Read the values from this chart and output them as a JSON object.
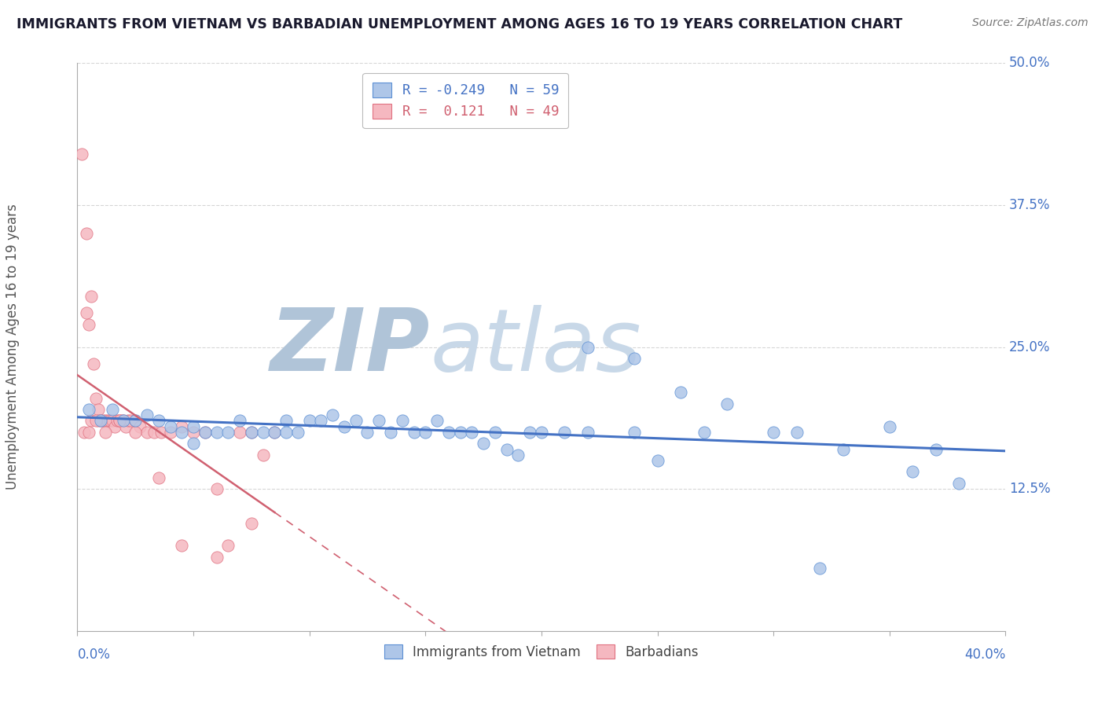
{
  "title": "IMMIGRANTS FROM VIETNAM VS BARBADIAN UNEMPLOYMENT AMONG AGES 16 TO 19 YEARS CORRELATION CHART",
  "source_text": "Source: ZipAtlas.com",
  "ylabel": "Unemployment Among Ages 16 to 19 years",
  "xlim": [
    0.0,
    0.4
  ],
  "ylim": [
    0.0,
    0.5
  ],
  "yticks": [
    0.0,
    0.125,
    0.25,
    0.375,
    0.5
  ],
  "ytick_labels": [
    "",
    "12.5%",
    "25.0%",
    "37.5%",
    "50.0%"
  ],
  "xtick_labels_left": "0.0%",
  "xtick_labels_right": "40.0%",
  "blue_color": "#aec6e8",
  "blue_edge_color": "#5b8fd4",
  "pink_color": "#f5b8c0",
  "pink_edge_color": "#e07080",
  "blue_line_color": "#4472c4",
  "pink_line_color": "#d06070",
  "axis_color": "#4472c4",
  "watermark_zip_color": "#b0c4d8",
  "watermark_atlas_color": "#c8d8e8",
  "grid_color": "#cccccc",
  "background_color": "#ffffff",
  "blue_scatter_x": [
    0.005,
    0.01,
    0.015,
    0.02,
    0.025,
    0.03,
    0.035,
    0.04,
    0.045,
    0.05,
    0.05,
    0.055,
    0.06,
    0.065,
    0.07,
    0.075,
    0.08,
    0.085,
    0.09,
    0.09,
    0.095,
    0.1,
    0.105,
    0.11,
    0.115,
    0.12,
    0.125,
    0.13,
    0.135,
    0.14,
    0.145,
    0.15,
    0.155,
    0.16,
    0.165,
    0.17,
    0.175,
    0.18,
    0.185,
    0.19,
    0.195,
    0.2,
    0.21,
    0.22,
    0.24,
    0.25,
    0.27,
    0.28,
    0.3,
    0.31,
    0.32,
    0.33,
    0.35,
    0.36,
    0.37,
    0.38,
    0.22,
    0.24,
    0.26
  ],
  "blue_scatter_y": [
    0.195,
    0.185,
    0.195,
    0.185,
    0.185,
    0.19,
    0.185,
    0.18,
    0.175,
    0.18,
    0.165,
    0.175,
    0.175,
    0.175,
    0.185,
    0.175,
    0.175,
    0.175,
    0.185,
    0.175,
    0.175,
    0.185,
    0.185,
    0.19,
    0.18,
    0.185,
    0.175,
    0.185,
    0.175,
    0.185,
    0.175,
    0.175,
    0.185,
    0.175,
    0.175,
    0.175,
    0.165,
    0.175,
    0.16,
    0.155,
    0.175,
    0.175,
    0.175,
    0.175,
    0.175,
    0.15,
    0.175,
    0.2,
    0.175,
    0.175,
    0.055,
    0.16,
    0.18,
    0.14,
    0.16,
    0.13,
    0.25,
    0.24,
    0.21
  ],
  "pink_scatter_x": [
    0.002,
    0.003,
    0.004,
    0.004,
    0.005,
    0.006,
    0.006,
    0.007,
    0.008,
    0.009,
    0.009,
    0.01,
    0.011,
    0.012,
    0.013,
    0.014,
    0.015,
    0.016,
    0.017,
    0.018,
    0.019,
    0.02,
    0.021,
    0.022,
    0.023,
    0.025,
    0.027,
    0.03,
    0.033,
    0.036,
    0.04,
    0.045,
    0.05,
    0.055,
    0.06,
    0.065,
    0.07,
    0.075,
    0.08,
    0.085,
    0.005,
    0.008,
    0.012,
    0.018,
    0.025,
    0.035,
    0.045,
    0.06,
    0.075
  ],
  "pink_scatter_y": [
    0.42,
    0.175,
    0.35,
    0.28,
    0.27,
    0.295,
    0.185,
    0.235,
    0.205,
    0.195,
    0.185,
    0.185,
    0.185,
    0.185,
    0.185,
    0.185,
    0.185,
    0.18,
    0.185,
    0.185,
    0.185,
    0.185,
    0.18,
    0.185,
    0.185,
    0.185,
    0.18,
    0.175,
    0.175,
    0.175,
    0.175,
    0.18,
    0.175,
    0.175,
    0.125,
    0.075,
    0.175,
    0.175,
    0.155,
    0.175,
    0.175,
    0.185,
    0.175,
    0.185,
    0.175,
    0.135,
    0.075,
    0.065,
    0.095
  ]
}
